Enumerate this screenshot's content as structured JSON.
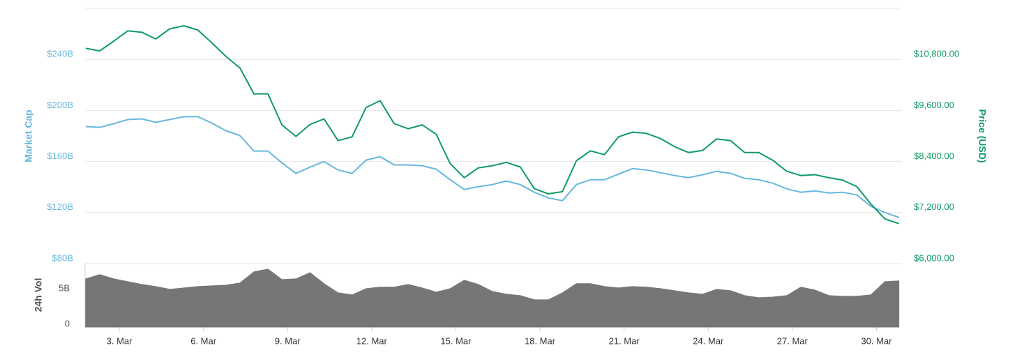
{
  "chart_data": [
    {
      "type": "line",
      "ylabel": "Market Cap",
      "y2label": "Price (USD)",
      "x": [
        1.8,
        2.3,
        2.8,
        3.3,
        3.8,
        4.3,
        4.8,
        5.3,
        5.8,
        6.3,
        6.8,
        7.3,
        7.8,
        8.3,
        8.8,
        9.3,
        9.8,
        10.3,
        10.8,
        11.3,
        11.8,
        12.3,
        12.8,
        13.3,
        13.8,
        14.3,
        14.8,
        15.3,
        15.8,
        16.3,
        16.8,
        17.3,
        17.8,
        18.3,
        18.8,
        19.3,
        19.8,
        20.3,
        20.8,
        21.3,
        21.8,
        22.3,
        22.8,
        23.3,
        23.8,
        24.3,
        24.8,
        25.3,
        25.8,
        26.3,
        26.8,
        27.3,
        27.8,
        28.3,
        28.8,
        29.3,
        29.8,
        30.3,
        30.8
      ],
      "xlim": [
        1.78,
        30.81
      ],
      "ylim": [
        80,
        280
      ],
      "yticks": [
        {
          "value": 80,
          "label": "$80B"
        },
        {
          "value": 120,
          "label": "$120B"
        },
        {
          "value": 160,
          "label": "$160B"
        },
        {
          "value": 200,
          "label": "$200B"
        },
        {
          "value": 240,
          "label": "$240B"
        }
      ],
      "y2lim": [
        6000,
        12000
      ],
      "y2ticks": [
        {
          "value": 6000,
          "label": "$6,000.00"
        },
        {
          "value": 7200,
          "label": "$7,200.00"
        },
        {
          "value": 8400,
          "label": "$8,400.00"
        },
        {
          "value": 9600,
          "label": "$9,600.00"
        },
        {
          "value": 10800,
          "label": "$10,800.00"
        }
      ],
      "grid": true,
      "series": [
        {
          "color": "#67b7dc",
          "values": [
            187.4,
            186.8,
            189.6,
            192.9,
            193.4,
            190.7,
            192.9,
            195.1,
            195.1,
            190.1,
            184.1,
            180.3,
            168.2,
            168.2,
            158.9,
            150.7,
            155.6,
            160.0,
            153.4,
            150.7,
            161.1,
            163.8,
            157.3,
            157.3,
            156.7,
            154.0,
            145.7,
            138.1,
            140.3,
            141.9,
            144.7,
            141.9,
            135.9,
            131.5,
            129.3,
            141.9,
            145.7,
            145.7,
            150.1,
            154.5,
            153.4,
            151.2,
            149.0,
            147.4,
            149.6,
            152.3,
            150.7,
            146.8,
            145.7,
            143.0,
            138.6,
            135.9,
            137.0,
            135.3,
            135.9,
            133.7,
            124.9,
            120.0,
            116.2
          ]
        },
        {
          "color": "#0f9a62",
          "axis": "y2",
          "values": [
            11060,
            11000,
            11230,
            11470,
            11440,
            11280,
            11520,
            11590,
            11490,
            11190,
            10870,
            10600,
            9990,
            9990,
            9260,
            8990,
            9270,
            9400,
            8890,
            8980,
            9670,
            9830,
            9290,
            9170,
            9260,
            9040,
            8350,
            8020,
            8250,
            8300,
            8380,
            8270,
            7760,
            7640,
            7690,
            8420,
            8650,
            8560,
            8980,
            9090,
            9060,
            8940,
            8750,
            8610,
            8660,
            8930,
            8890,
            8610,
            8610,
            8430,
            8170,
            8070,
            8090,
            8020,
            7960,
            7810,
            7400,
            7050,
            6940
          ]
        }
      ]
    },
    {
      "type": "area",
      "ylabel": "24h Vol",
      "x": [
        1.8,
        2.3,
        2.8,
        3.3,
        3.8,
        4.3,
        4.8,
        5.3,
        5.8,
        6.3,
        6.8,
        7.3,
        7.8,
        8.3,
        8.8,
        9.3,
        9.8,
        10.3,
        10.8,
        11.3,
        11.8,
        12.3,
        12.8,
        13.3,
        13.8,
        14.3,
        14.8,
        15.3,
        15.8,
        16.3,
        16.8,
        17.3,
        17.8,
        18.3,
        18.8,
        19.3,
        19.8,
        20.3,
        20.8,
        21.3,
        21.8,
        22.3,
        22.8,
        23.3,
        23.8,
        24.3,
        24.8,
        25.3,
        25.8,
        26.3,
        26.8,
        27.3,
        27.8,
        28.3,
        28.8,
        29.3,
        29.8,
        30.3,
        30.8
      ],
      "xlim": [
        1.78,
        30.81
      ],
      "xticks": [
        {
          "value": 3,
          "label": "3. Mar"
        },
        {
          "value": 6,
          "label": "6. Mar"
        },
        {
          "value": 9,
          "label": "9. Mar"
        },
        {
          "value": 12,
          "label": "12. Mar"
        },
        {
          "value": 15,
          "label": "15. Mar"
        },
        {
          "value": 18,
          "label": "18. Mar"
        },
        {
          "value": 21,
          "label": "21. Mar"
        },
        {
          "value": 24,
          "label": "24. Mar"
        },
        {
          "value": 27,
          "label": "27. Mar"
        },
        {
          "value": 30,
          "label": "30. Mar"
        }
      ],
      "ylim": [
        0,
        8.9
      ],
      "yticks": [
        0,
        {
          "value": 5,
          "label": "5B"
        }
      ],
      "grid": false,
      "series": [
        {
          "color": "#767676",
          "values": [
            6.76,
            7.35,
            6.76,
            6.37,
            5.98,
            5.68,
            5.29,
            5.49,
            5.68,
            5.78,
            5.88,
            6.17,
            7.74,
            8.13,
            6.66,
            6.76,
            7.64,
            6.08,
            4.8,
            4.51,
            5.39,
            5.59,
            5.59,
            5.98,
            5.49,
            4.9,
            5.39,
            6.57,
            5.98,
            5.0,
            4.61,
            4.41,
            3.82,
            3.82,
            4.8,
            6.08,
            6.08,
            5.68,
            5.49,
            5.68,
            5.59,
            5.39,
            5.1,
            4.8,
            4.61,
            5.29,
            5.1,
            4.41,
            4.12,
            4.21,
            4.41,
            5.59,
            5.19,
            4.41,
            4.31,
            4.31,
            4.51,
            6.37,
            6.47
          ]
        }
      ]
    }
  ]
}
